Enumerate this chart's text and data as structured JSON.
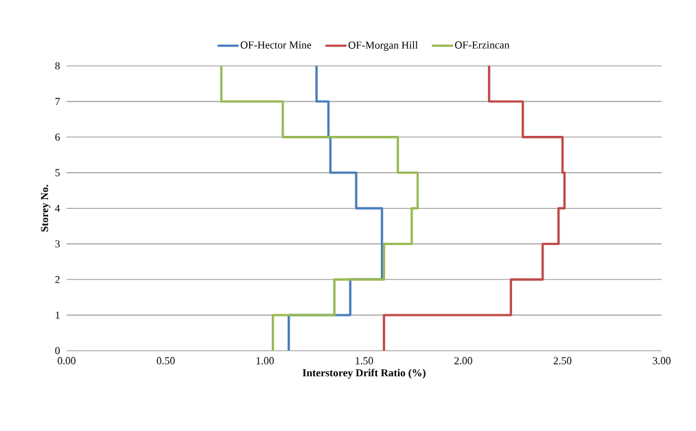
{
  "chart_data": {
    "type": "line",
    "xlabel": "Interstorey Drift Ratio (%)",
    "ylabel": "Storey No.",
    "series": [
      {
        "name": "OF-Hector Mine",
        "color": "#4a7ebb",
        "x": [
          1.12,
          1.12,
          1.43,
          1.43,
          1.59,
          1.59,
          1.46,
          1.46,
          1.33,
          1.33,
          1.32,
          1.32,
          1.26,
          1.26
        ],
        "values": [
          0,
          1,
          1,
          2,
          2,
          4,
          4,
          5,
          5,
          6,
          6,
          7,
          7,
          8
        ]
      },
      {
        "name": "OF-Morgan Hill",
        "color": "#be4b48",
        "x": [
          1.6,
          1.6,
          2.24,
          2.24,
          2.4,
          2.4,
          2.48,
          2.48,
          2.51,
          2.51,
          2.5,
          2.5,
          2.3,
          2.3,
          2.13,
          2.13
        ],
        "values": [
          0,
          1,
          1,
          2,
          2,
          3,
          3,
          4,
          4,
          5,
          5,
          6,
          6,
          7,
          7,
          8
        ]
      },
      {
        "name": "OF-Erzincan",
        "color": "#98b954",
        "x": [
          1.04,
          1.04,
          1.35,
          1.35,
          1.6,
          1.6,
          1.74,
          1.74,
          1.77,
          1.77,
          1.67,
          1.67,
          1.09,
          1.09,
          0.78,
          0.78
        ],
        "values": [
          0,
          1,
          1,
          2,
          2,
          3,
          3,
          4,
          4,
          5,
          5,
          6,
          6,
          7,
          7,
          8
        ]
      }
    ],
    "xlim": [
      0,
      3
    ],
    "ylim": [
      0,
      8
    ],
    "xticks": [
      {
        "value": 0,
        "label": "0.00"
      },
      {
        "value": 0.5,
        "label": "0.50"
      },
      {
        "value": 1,
        "label": "1.00"
      },
      {
        "value": 1.5,
        "label": "1.50"
      },
      {
        "value": 2,
        "label": "2.00"
      },
      {
        "value": 2.5,
        "label": "2.50"
      },
      {
        "value": 3,
        "label": "3.00"
      }
    ],
    "yticks": [
      0,
      1,
      2,
      3,
      4,
      5,
      6,
      7,
      8
    ],
    "grid": "y",
    "legend": "top",
    "marker": "none",
    "line_style": "solid"
  }
}
